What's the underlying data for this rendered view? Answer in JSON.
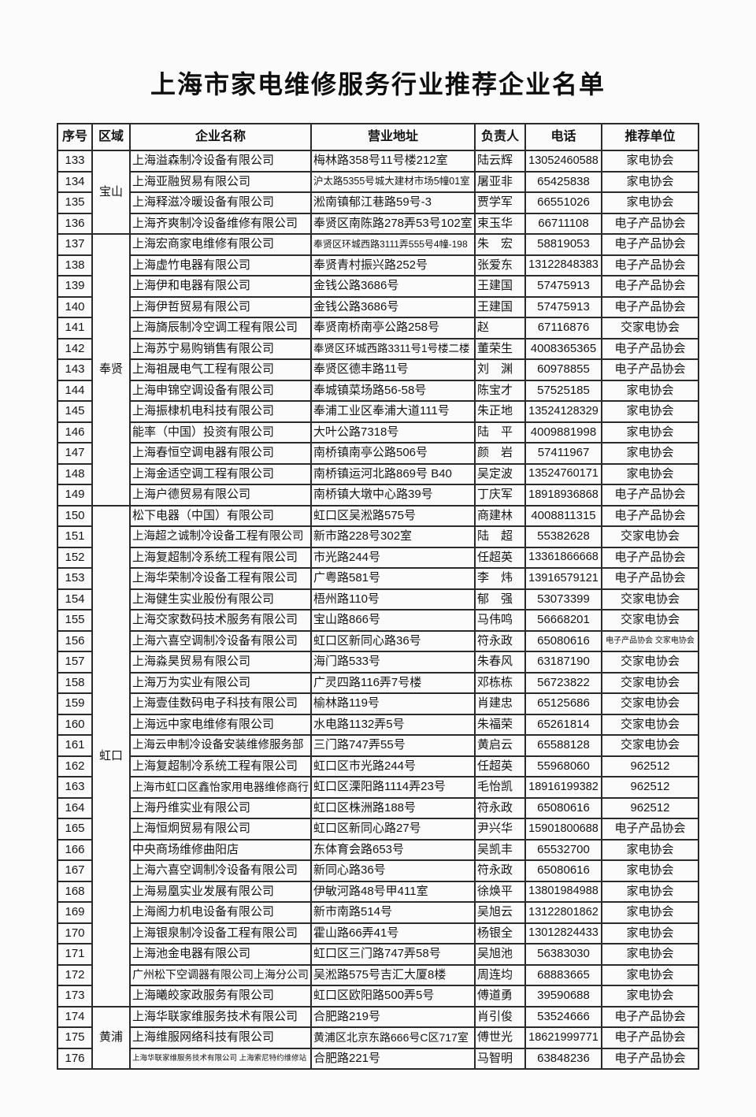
{
  "page": {
    "title": "上海市家电维修服务行业推荐企业名单"
  },
  "table": {
    "headers": [
      "序号",
      "区域",
      "企业名称",
      "营业地址",
      "负责人",
      "电话",
      "推荐单位"
    ],
    "regions": [
      {
        "label": "宝山",
        "row_count": 4
      },
      {
        "label": "奉贤",
        "row_count": 13
      },
      {
        "label": "虹口",
        "row_count": 24
      },
      {
        "label": "黄浦",
        "row_count": 3
      }
    ],
    "rows": [
      {
        "no": "133",
        "name": "上海溢森制冷设备有限公司",
        "address": "梅林路358号11号楼212室",
        "person": "陆云辉",
        "phone": "13052460588",
        "recommend": "家电协会"
      },
      {
        "no": "134",
        "name": "上海亚融贸易有限公司",
        "address": "沪太路5355号城大建材市场5幢01室",
        "person": "屠亚非",
        "phone": "65425838",
        "recommend": "家电协会"
      },
      {
        "no": "135",
        "name": "上海释滋冷暖设备有限公司",
        "address": "淞南镇郁江巷路59号-3",
        "person": "贾学军",
        "phone": "66551026",
        "recommend": "家电协会"
      },
      {
        "no": "136",
        "name": "上海齐爽制冷设备维修有限公司",
        "address": "奉贤区南陈路278弄53号102室",
        "person": "束玉华",
        "phone": "66711108",
        "recommend": "电子产品协会"
      },
      {
        "no": "137",
        "name": "上海宏商家电维修有限公司",
        "address": "奉贤区环城西路3111弄555号4幢-198",
        "person": "朱　宏",
        "phone": "58819053",
        "recommend": "电子产品协会"
      },
      {
        "no": "138",
        "name": "上海虚竹电器有限公司",
        "address": "奉贤青村振兴路252号",
        "person": "张爱东",
        "phone": "13122848383",
        "recommend": "电子产品协会"
      },
      {
        "no": "139",
        "name": "上海伊和电器有限公司",
        "address": "金钱公路3686号",
        "person": "王建国",
        "phone": "57475913",
        "recommend": "电子产品协会"
      },
      {
        "no": "140",
        "name": "上海伊哲贸易有限公司",
        "address": "金钱公路3686号",
        "person": "王建国",
        "phone": "57475913",
        "recommend": "电子产品协会"
      },
      {
        "no": "141",
        "name": "上海旖辰制冷空调工程有限公司",
        "address": "奉贤南桥南亭公路258号",
        "person": "赵",
        "phone": "67116876",
        "recommend": "交家电协会"
      },
      {
        "no": "142",
        "name": "上海苏宁易购销售有限公司",
        "address": "奉贤区环城西路3311号1号楼二楼",
        "person": "董荣生",
        "phone": "4008365365",
        "recommend": "电子产品协会"
      },
      {
        "no": "143",
        "name": "上海祖晟电气工程有限公司",
        "address": "奉贤区德丰路11号",
        "person": "刘　渊",
        "phone": "60978855",
        "recommend": "电子产品协会"
      },
      {
        "no": "144",
        "name": "上海申锦空调设备有限公司",
        "address": "奉城镇菜场路56-58号",
        "person": "陈宝才",
        "phone": "57525185",
        "recommend": "家电协会"
      },
      {
        "no": "145",
        "name": "上海振棣机电科技有限公司",
        "address": "奉浦工业区奉浦大道111号",
        "person": "朱正地",
        "phone": "13524128329",
        "recommend": "家电协会"
      },
      {
        "no": "146",
        "name": "能率（中国）投资有限公司",
        "address": "大叶公路7318号",
        "person": "陆　平",
        "phone": "4009881998",
        "recommend": "家电协会"
      },
      {
        "no": "147",
        "name": "上海春恒空调电器有限公司",
        "address": "南桥镇南亭公路506号",
        "person": "颜　岩",
        "phone": "57411967",
        "recommend": "家电协会"
      },
      {
        "no": "148",
        "name": "上海金适空调工程有限公司",
        "address": "南桥镇运河北路869号 B40",
        "person": "吴定波",
        "phone": "13524760171",
        "recommend": "家电协会"
      },
      {
        "no": "149",
        "name": "上海户德贸易有限公司",
        "address": "南桥镇大墩中心路39号",
        "person": "丁庆军",
        "phone": "18918936868",
        "recommend": "电子产品协会"
      },
      {
        "no": "150",
        "name": "松下电器（中国）有限公司",
        "address": "虹口区吴淞路575号",
        "person": "商建林",
        "phone": "4008811315",
        "recommend": "电子产品协会"
      },
      {
        "no": "151",
        "name": "上海超之诚制冷设备工程有限公司",
        "address": "新市路228号302室",
        "person": "陆　超",
        "phone": "55382628",
        "recommend": "交家电协会"
      },
      {
        "no": "152",
        "name": "上海复超制冷系统工程有限公司",
        "address": "市光路244号",
        "person": "任超英",
        "phone": "13361866668",
        "recommend": "电子产品协会"
      },
      {
        "no": "153",
        "name": "上海华荣制冷设备工程有限公司",
        "address": "广粤路581号",
        "person": "李　炜",
        "phone": "13916579121",
        "recommend": "电子产品协会"
      },
      {
        "no": "154",
        "name": "上海健生实业股份有限公司",
        "address": "梧州路110号",
        "person": "郁　强",
        "phone": "53073399",
        "recommend": "交家电协会"
      },
      {
        "no": "155",
        "name": "上海交家数码技术服务有限公司",
        "address": "宝山路866号",
        "person": "马伟鸣",
        "phone": "56668201",
        "recommend": "交家电协会"
      },
      {
        "no": "156",
        "name": "上海六喜空调制冷设备有限公司",
        "address": "虹口区新同心路36号",
        "person": "符永政",
        "phone": "65080616",
        "recommend": "电子产品协会 交家电协会"
      },
      {
        "no": "157",
        "name": "上海淼昊贸易有限公司",
        "address": "海门路533号",
        "person": "朱春风",
        "phone": "63187190",
        "recommend": "交家电协会"
      },
      {
        "no": "158",
        "name": "上海万为实业有限公司",
        "address": "广灵四路116弄7号楼",
        "person": "邓栋栋",
        "phone": "56723822",
        "recommend": "交家电协会"
      },
      {
        "no": "159",
        "name": "上海壹佳数码电子科技有限公司",
        "address": "榆林路119号",
        "person": "肖建忠",
        "phone": "65125686",
        "recommend": "交家电协会"
      },
      {
        "no": "160",
        "name": "上海远中家电维修有限公司",
        "address": "水电路1132弄5号",
        "person": "朱福荣",
        "phone": "65261814",
        "recommend": "交家电协会"
      },
      {
        "no": "161",
        "name": "上海云申制冷设备安装维修服务部",
        "address": "三门路747弄55号",
        "person": "黄启云",
        "phone": "65588128",
        "recommend": "交家电协会"
      },
      {
        "no": "162",
        "name": "上海复超制冷系统工程有限公司",
        "address": "虹口区市光路244号",
        "person": "任超英",
        "phone": "55968060",
        "recommend": "962512"
      },
      {
        "no": "163",
        "name": "上海市虹口区鑫怡家用电器维修商行",
        "address": "虹口区溧阳路1114弄23号",
        "person": "毛怡凯",
        "phone": "18916199382",
        "recommend": "962512"
      },
      {
        "no": "164",
        "name": "上海丹维实业有限公司",
        "address": "虹口区株洲路188号",
        "person": "符永政",
        "phone": "65080616",
        "recommend": "962512"
      },
      {
        "no": "165",
        "name": "上海恒炯贸易有限公司",
        "address": "虹口区新同心路27号",
        "person": "尹兴华",
        "phone": "15901800688",
        "recommend": "电子产品协会"
      },
      {
        "no": "166",
        "name": "中央商场维修曲阳店",
        "address": "东体育会路653号",
        "person": "吴凯丰",
        "phone": "65532700",
        "recommend": "家电协会"
      },
      {
        "no": "167",
        "name": "上海六喜空调制冷设备有限公司",
        "address": "新同心路36号",
        "person": "符永政",
        "phone": "65080616",
        "recommend": "家电协会"
      },
      {
        "no": "168",
        "name": "上海易凰实业发展有限公司",
        "address": "伊敏河路48号甲411室",
        "person": "徐焕平",
        "phone": "13801984988",
        "recommend": "家电协会"
      },
      {
        "no": "169",
        "name": "上海阁力机电设备有限公司",
        "address": "新市南路514号",
        "person": "吴旭云",
        "phone": "13122801862",
        "recommend": "家电协会"
      },
      {
        "no": "170",
        "name": "上海银泉制冷设备工程有限公司",
        "address": "霍山路66弄41号",
        "person": "杨银全",
        "phone": "13012824433",
        "recommend": "家电协会"
      },
      {
        "no": "171",
        "name": "上海池金电器有限公司",
        "address": "虹口区三门路747弄58号",
        "person": "吴旭池",
        "phone": "56383030",
        "recommend": "家电协会"
      },
      {
        "no": "172",
        "name": "广州松下空调器有限公司上海分公司",
        "address": "吴淞路575号吉汇大厦8楼",
        "person": "周连均",
        "phone": "68883665",
        "recommend": "家电协会"
      },
      {
        "no": "173",
        "name": "上海曦皎家政服务有限公司",
        "address": "虹口区欧阳路500弄5号",
        "person": "傅道勇",
        "phone": "39590688",
        "recommend": "家电协会"
      },
      {
        "no": "174",
        "name": "上海华联家维服务技术有限公司",
        "address": "合肥路219号",
        "person": "肖引俊",
        "phone": "53524666",
        "recommend": "电子产品协会"
      },
      {
        "no": "175",
        "name": "上海维服网络科技有限公司",
        "address": "黄浦区北京东路666号C区717室",
        "person": "傅世光",
        "phone": "18621999771",
        "recommend": "电子产品协会"
      },
      {
        "no": "176",
        "name": "上海华联家维服务技术有限公司 上海索尼特约维修站",
        "address": "合肥路221号",
        "person": "马智明",
        "phone": "63848236",
        "recommend": "电子产品协会"
      }
    ]
  }
}
